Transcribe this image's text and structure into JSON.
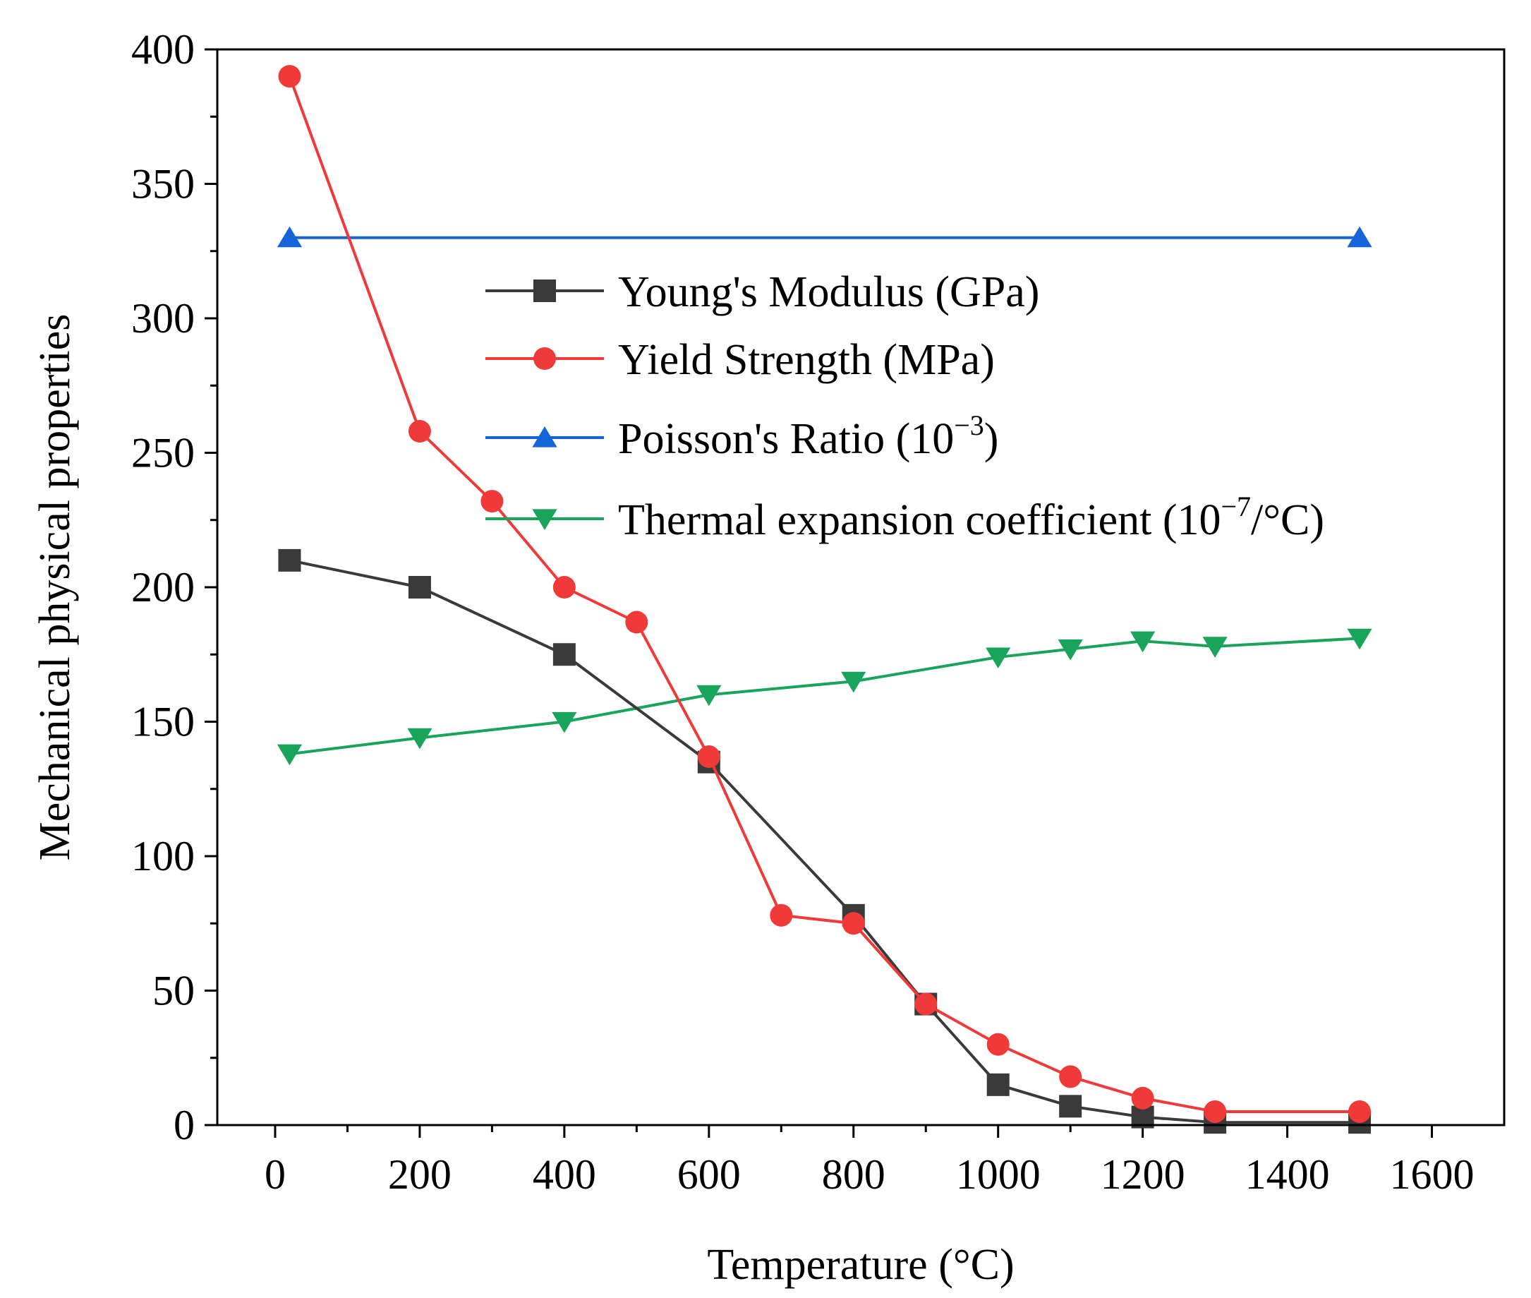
{
  "chart_data": {
    "type": "line",
    "xlabel": "Temperature (°C)",
    "ylabel": "Mechanical physical properties",
    "xlim": [
      -80,
      1700
    ],
    "ylim": [
      0,
      400
    ],
    "xticks": [
      0,
      200,
      400,
      600,
      800,
      1000,
      1200,
      1400,
      1600
    ],
    "yticks": [
      0,
      50,
      100,
      150,
      200,
      250,
      300,
      350,
      400
    ],
    "legend_position": "upper-center",
    "series": [
      {
        "name": "Young's Modulus (GPa)",
        "label_parts": [
          "Young's Modulus (GPa)"
        ],
        "color": "#3a3a3a",
        "marker": "square",
        "x": [
          20,
          200,
          400,
          600,
          800,
          900,
          1000,
          1100,
          1200,
          1300,
          1500
        ],
        "y": [
          210,
          200,
          175,
          135,
          78,
          45,
          15,
          7,
          3,
          1,
          1
        ]
      },
      {
        "name": "Yield Strength (MPa)",
        "label_parts": [
          "Yield Strength (MPa)"
        ],
        "color": "#f03a3a",
        "marker": "circle",
        "x": [
          20,
          200,
          300,
          400,
          500,
          600,
          700,
          800,
          900,
          1000,
          1100,
          1200,
          1300,
          1500
        ],
        "y": [
          390,
          258,
          232,
          200,
          187,
          137,
          78,
          75,
          45,
          30,
          18,
          10,
          5,
          5
        ]
      },
      {
        "name": "Poisson's Ratio (10−3)",
        "label_parts": [
          "Poisson's Ratio (10",
          "−3",
          ")"
        ],
        "color": "#1565d8",
        "marker": "triangle-up",
        "x": [
          20,
          1500
        ],
        "y": [
          330,
          330
        ]
      },
      {
        "name": "Thermal expansion coefficient (10−7/°C)",
        "label_parts": [
          "Thermal expansion coefficient (10",
          "−7",
          "/°C)"
        ],
        "color": "#18a45a",
        "marker": "triangle-down",
        "x": [
          20,
          200,
          400,
          600,
          800,
          1000,
          1100,
          1200,
          1300,
          1500
        ],
        "y": [
          138,
          144,
          150,
          160,
          165,
          174,
          177,
          180,
          178,
          181
        ]
      }
    ]
  }
}
